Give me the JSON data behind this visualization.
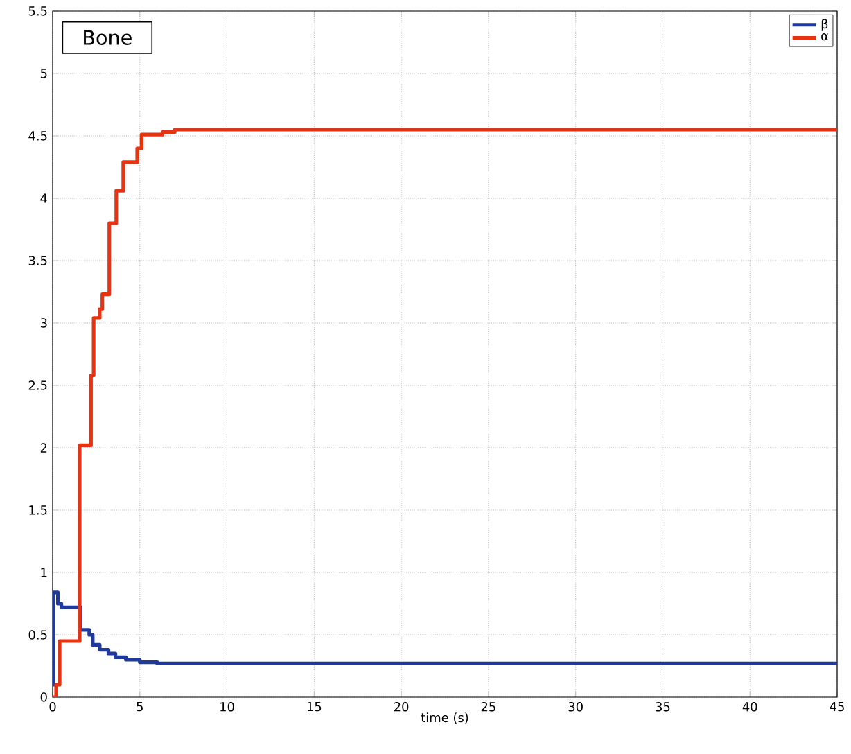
{
  "chart_data": {
    "type": "step",
    "xlabel": "time (s)",
    "annotations": [
      "Bone"
    ],
    "xlim": [
      0,
      45
    ],
    "ylim": [
      0,
      5.5
    ],
    "xticks": [
      0,
      5,
      10,
      15,
      20,
      25,
      30,
      35,
      40,
      45
    ],
    "yticks": [
      0,
      0.5,
      1,
      1.5,
      2,
      2.5,
      3,
      3.5,
      4,
      4.5,
      5,
      5.5
    ],
    "grid": true,
    "legend": "top right",
    "series": [
      {
        "name": "β",
        "color": "#1f3a9a",
        "x": [
          0,
          0.05,
          0.3,
          0.5,
          1.6,
          2.1,
          2.3,
          2.7,
          3.2,
          3.6,
          4.2,
          5,
          6,
          7,
          45
        ],
        "values": [
          0.1,
          0.84,
          0.75,
          0.72,
          0.54,
          0.5,
          0.42,
          0.38,
          0.35,
          0.32,
          0.3,
          0.28,
          0.27,
          0.27,
          0.27
        ]
      },
      {
        "name": "α",
        "color": "#e63312",
        "x": [
          0,
          0.2,
          0.4,
          1.55,
          2.2,
          2.35,
          2.7,
          2.85,
          3.25,
          3.65,
          4.05,
          4.85,
          5.1,
          6.3,
          7,
          45
        ],
        "values": [
          0,
          0.1,
          0.45,
          2.02,
          2.58,
          3.04,
          3.11,
          3.23,
          3.8,
          4.06,
          4.29,
          4.4,
          4.51,
          4.53,
          4.55,
          4.55
        ]
      }
    ]
  }
}
